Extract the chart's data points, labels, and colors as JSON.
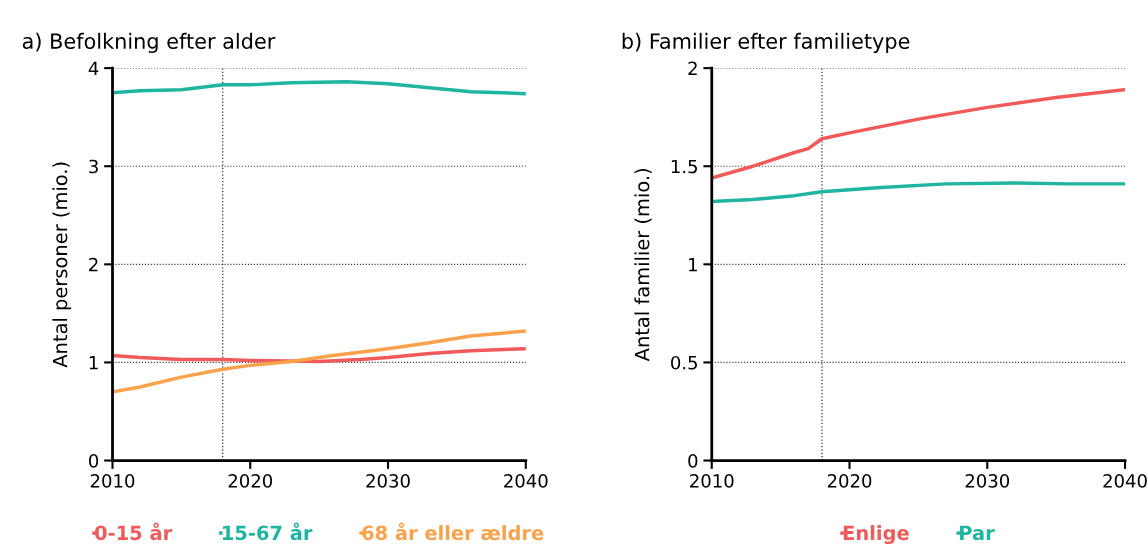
{
  "chart_data": [
    {
      "type": "line",
      "title": "a) Befolkning efter alder",
      "ylabel": "Antal personer (mio.)",
      "xlim": [
        2010,
        2040
      ],
      "xticks": [
        2010,
        2020,
        2030,
        2040
      ],
      "ylim": [
        0,
        4
      ],
      "yticks": [
        0,
        1,
        2,
        3,
        4
      ],
      "grid": "y",
      "legend": "bottom",
      "ref_lines": [
        {
          "axis": "x",
          "value": 2018,
          "color": "#333333",
          "line_style": "dotted"
        }
      ],
      "series": [
        {
          "name": "0-15 år",
          "color": "#f05a5a",
          "x": [
            2010,
            2012,
            2015,
            2018,
            2020,
            2025,
            2028,
            2030,
            2033,
            2036,
            2040
          ],
          "values": [
            1.07,
            1.05,
            1.03,
            1.03,
            1.02,
            1.01,
            1.03,
            1.05,
            1.09,
            1.12,
            1.14
          ]
        },
        {
          "name": "15-67 år",
          "color": "#1fb5a0",
          "x": [
            2010,
            2012,
            2015,
            2018,
            2020,
            2023,
            2027,
            2030,
            2033,
            2036,
            2040
          ],
          "values": [
            3.75,
            3.77,
            3.78,
            3.83,
            3.83,
            3.85,
            3.86,
            3.84,
            3.8,
            3.76,
            3.74
          ]
        },
        {
          "name": "68 år eller ældre",
          "color": "#f9a24b",
          "x": [
            2010,
            2012,
            2015,
            2018,
            2020,
            2023,
            2026,
            2030,
            2033,
            2036,
            2040
          ],
          "values": [
            0.7,
            0.75,
            0.85,
            0.93,
            0.97,
            1.01,
            1.07,
            1.14,
            1.2,
            1.27,
            1.32
          ]
        }
      ]
    },
    {
      "type": "line",
      "title": "b) Familier efter familietype",
      "ylabel": "Antal familier (mio.)",
      "xlim": [
        2010,
        2040
      ],
      "xticks": [
        2010,
        2020,
        2030,
        2040
      ],
      "ylim": [
        0,
        2
      ],
      "yticks": [
        0,
        0.5,
        1,
        1.5,
        2
      ],
      "grid": "y",
      "legend": "bottom",
      "ref_lines": [
        {
          "axis": "x",
          "value": 2018,
          "color": "#333333",
          "line_style": "dotted"
        }
      ],
      "series": [
        {
          "name": "Enlige",
          "color": "#f05a5a",
          "x": [
            2010,
            2013,
            2016,
            2017,
            2018,
            2020,
            2025,
            2030,
            2035,
            2040
          ],
          "values": [
            1.44,
            1.5,
            1.57,
            1.59,
            1.64,
            1.67,
            1.74,
            1.8,
            1.85,
            1.89
          ]
        },
        {
          "name": "Par",
          "color": "#1fb5a0",
          "x": [
            2010,
            2013,
            2016,
            2018,
            2022,
            2027,
            2032,
            2036,
            2040
          ],
          "values": [
            1.32,
            1.33,
            1.35,
            1.37,
            1.39,
            1.41,
            1.415,
            1.41,
            1.41
          ]
        }
      ]
    }
  ]
}
